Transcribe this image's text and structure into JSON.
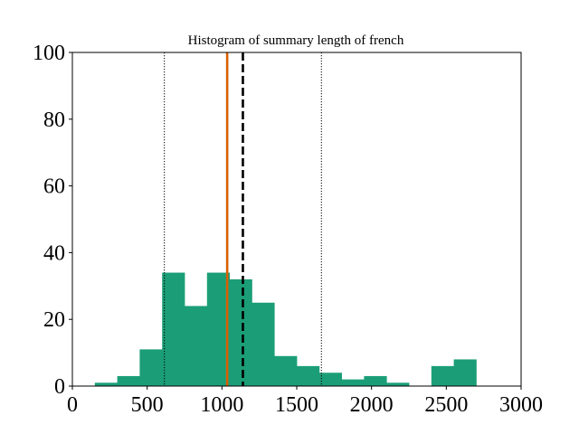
{
  "chart_data": {
    "type": "bar",
    "title": "Histogram of summary length of french",
    "xlabel": "",
    "ylabel": "",
    "xlim": [
      0,
      3000
    ],
    "ylim": [
      0,
      100
    ],
    "x_ticks": [
      0,
      500,
      1000,
      1500,
      2000,
      2500,
      3000
    ],
    "y_ticks": [
      0,
      20,
      40,
      60,
      80,
      100
    ],
    "bins": [
      {
        "start": 150,
        "end": 300,
        "count": 1
      },
      {
        "start": 300,
        "end": 450,
        "count": 3
      },
      {
        "start": 450,
        "end": 600,
        "count": 11
      },
      {
        "start": 600,
        "end": 750,
        "count": 34
      },
      {
        "start": 750,
        "end": 900,
        "count": 24
      },
      {
        "start": 900,
        "end": 1050,
        "count": 34
      },
      {
        "start": 1050,
        "end": 1200,
        "count": 32
      },
      {
        "start": 1200,
        "end": 1350,
        "count": 25
      },
      {
        "start": 1350,
        "end": 1500,
        "count": 9
      },
      {
        "start": 1500,
        "end": 1650,
        "count": 6
      },
      {
        "start": 1650,
        "end": 1800,
        "count": 4
      },
      {
        "start": 1800,
        "end": 1950,
        "count": 2
      },
      {
        "start": 1950,
        "end": 2100,
        "count": 3
      },
      {
        "start": 2100,
        "end": 2250,
        "count": 1
      },
      {
        "start": 2250,
        "end": 2400,
        "count": 0
      },
      {
        "start": 2400,
        "end": 2550,
        "count": 6
      },
      {
        "start": 2550,
        "end": 2700,
        "count": 8
      }
    ],
    "bar_color": "#1b9e77",
    "vertical_lines": [
      {
        "x": 1035,
        "style": "solid",
        "color": "#d95f02"
      },
      {
        "x": 1140,
        "style": "dashed",
        "color": "#000000"
      },
      {
        "x": 615,
        "style": "dotted",
        "color": "#000000"
      },
      {
        "x": 1665,
        "style": "dotted",
        "color": "#000000"
      }
    ],
    "grid": false
  }
}
